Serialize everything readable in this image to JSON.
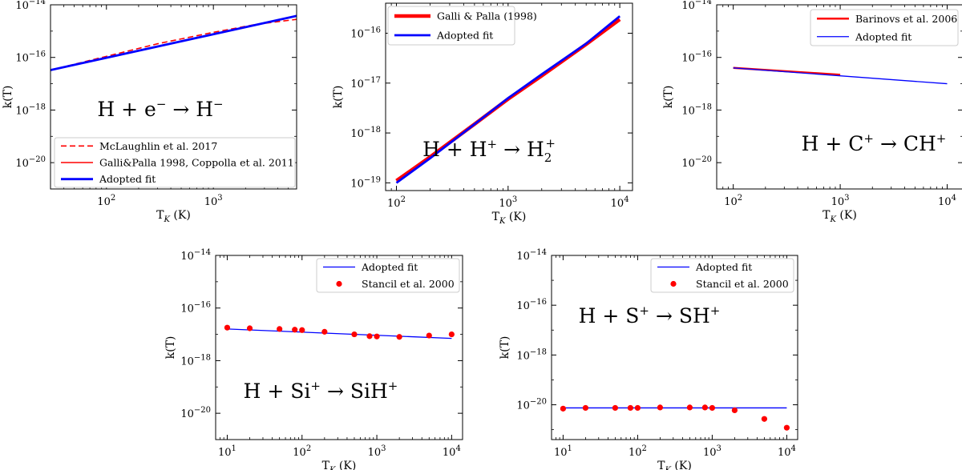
{
  "colors": {
    "red": "#ff0000",
    "blue": "#0000ff",
    "black": "#000000"
  },
  "chart_data": [
    {
      "type": "line",
      "title": "",
      "xlabel": "T_K (K)",
      "ylabel": "k(T)",
      "xscale": "log",
      "yscale": "log",
      "xlim": [
        30,
        6000
      ],
      "ylim": [
        1e-21,
        1e-14
      ],
      "xticks": [
        100,
        1000
      ],
      "xtick_labels": [
        [
          "10",
          "2"
        ],
        [
          "10",
          "3"
        ]
      ],
      "yticks": [
        1e-20,
        1e-18,
        1e-16,
        1e-14
      ],
      "ytick_labels": [
        [
          "10",
          "−20"
        ],
        [
          "10",
          "−18"
        ],
        [
          "10",
          "−16"
        ],
        [
          "10",
          "−14"
        ]
      ],
      "reaction": [
        "H + e",
        "−",
        " → H",
        "−"
      ],
      "legend_position": "lower-left",
      "series": [
        {
          "name": "McLaughlin et al. 2017",
          "color": "#ff0000",
          "style": "dashed",
          "width": 1.6,
          "x": [
            30,
            100,
            300,
            1000,
            2500,
            6000
          ],
          "y": [
            3.3e-17,
            1.1e-16,
            3.3e-16,
            9e-16,
            1.8e-15,
            2.8e-15
          ]
        },
        {
          "name": "Galli&Palla 1998, Coppolla et al. 2011",
          "color": "#ff0000",
          "style": "solid",
          "width": 1.4,
          "x": [
            30,
            6000
          ],
          "y": [
            3.3e-17,
            3.8e-15
          ]
        },
        {
          "name": "Adopted fit",
          "color": "#0000ff",
          "style": "solid",
          "width": 2.8,
          "x": [
            30,
            6000
          ],
          "y": [
            3.3e-17,
            3.8e-15
          ]
        }
      ]
    },
    {
      "type": "line",
      "title": "",
      "xlabel": "T_K (K)",
      "ylabel": "k(T)",
      "xscale": "log",
      "yscale": "log",
      "xlim": [
        80,
        13000
      ],
      "ylim": [
        7e-20,
        4e-16
      ],
      "xticks": [
        100,
        1000,
        10000
      ],
      "xtick_labels": [
        [
          "10",
          "2"
        ],
        [
          "10",
          "3"
        ],
        [
          "10",
          "4"
        ]
      ],
      "yticks": [
        1e-19,
        1e-18,
        1e-17,
        1e-16
      ],
      "ytick_labels": [
        [
          "10",
          "−19"
        ],
        [
          "10",
          "−18"
        ],
        [
          "10",
          "−17"
        ],
        [
          "10",
          "−16"
        ]
      ],
      "reaction": [
        "H + H",
        "+",
        " → H",
        "2",
        "+"
      ],
      "legend_position": "top-left",
      "series": [
        {
          "name": "Galli & Palla (1998)",
          "color": "#ff0000",
          "style": "solid",
          "width": 4.5,
          "x": [
            100,
            200,
            500,
            1000,
            2000,
            5000,
            10000
          ],
          "y": [
            1.1e-19,
            3.3e-19,
            1.5e-18,
            4.8e-18,
            1.4e-17,
            6e-17,
            1.9e-16
          ]
        },
        {
          "name": "Adopted fit",
          "color": "#0000ff",
          "style": "solid",
          "width": 2.8,
          "x": [
            100,
            200,
            500,
            1000,
            2000,
            5000,
            10000
          ],
          "y": [
            1e-19,
            3.1e-19,
            1.5e-18,
            5e-18,
            1.5e-17,
            6.2e-17,
            2.2e-16
          ]
        }
      ]
    },
    {
      "type": "line",
      "title": "",
      "xlabel": "T_K (K)",
      "ylabel": "k(T)",
      "xscale": "log",
      "yscale": "log",
      "xlim": [
        70,
        14000
      ],
      "ylim": [
        1e-21,
        1e-14
      ],
      "xticks": [
        100,
        1000,
        10000
      ],
      "xtick_labels": [
        [
          "10",
          "2"
        ],
        [
          "10",
          "3"
        ],
        [
          "10",
          "4"
        ]
      ],
      "yticks": [
        1e-20,
        1e-18,
        1e-16,
        1e-14
      ],
      "ytick_labels": [
        [
          "10",
          "−20"
        ],
        [
          "10",
          "−18"
        ],
        [
          "10",
          "−16"
        ],
        [
          "10",
          "−14"
        ]
      ],
      "reaction": [
        "H + C",
        "+",
        " → CH",
        "+"
      ],
      "legend_position": "top-right",
      "series": [
        {
          "name": "Barinovs et al. 2006",
          "color": "#ff0000",
          "style": "solid",
          "width": 2.5,
          "x": [
            100,
            1000
          ],
          "y": [
            4e-17,
            2.2e-17
          ]
        },
        {
          "name": "Adopted fit",
          "color": "#0000ff",
          "style": "solid",
          "width": 1.3,
          "x": [
            100,
            10000
          ],
          "y": [
            4e-17,
            1e-17
          ]
        }
      ]
    },
    {
      "type": "scatter",
      "title": "",
      "xlabel": "T_K (K)",
      "ylabel": "k(T)",
      "xscale": "log",
      "yscale": "log",
      "xlim": [
        7,
        14000
      ],
      "ylim": [
        1e-21,
        1e-14
      ],
      "xticks": [
        10,
        100,
        1000,
        10000
      ],
      "xtick_labels": [
        [
          "10",
          "1"
        ],
        [
          "10",
          "2"
        ],
        [
          "10",
          "3"
        ],
        [
          "10",
          "4"
        ]
      ],
      "yticks": [
        1e-20,
        1e-18,
        1e-16,
        1e-14
      ],
      "ytick_labels": [
        [
          "10",
          "−20"
        ],
        [
          "10",
          "−18"
        ],
        [
          "10",
          "−16"
        ],
        [
          "10",
          "−14"
        ]
      ],
      "reaction": [
        "H + Si",
        "+",
        " → SiH",
        "+"
      ],
      "legend_position": "top-right",
      "series": [
        {
          "name": "Adopted fit",
          "kind": "line",
          "color": "#0000ff",
          "width": 1.3,
          "x": [
            10,
            10000
          ],
          "y": [
            1.6e-17,
            7e-18
          ]
        },
        {
          "name": "Stancil et al. 2000",
          "kind": "points",
          "color": "#ff0000",
          "x": [
            10,
            20,
            50,
            80,
            100,
            200,
            500,
            800,
            1000,
            2000,
            5000,
            10000
          ],
          "y": [
            1.8e-17,
            1.7e-17,
            1.6e-17,
            1.5e-17,
            1.45e-17,
            1.25e-17,
            1e-17,
            8.5e-18,
            8.3e-18,
            8e-18,
            9e-18,
            1e-17
          ]
        }
      ]
    },
    {
      "type": "scatter",
      "title": "",
      "xlabel": "T_K (K)",
      "ylabel": "k(T)",
      "xscale": "log",
      "yscale": "log",
      "xlim": [
        7,
        14000
      ],
      "ylim": [
        4e-22,
        1e-14
      ],
      "xticks": [
        10,
        100,
        1000,
        10000
      ],
      "xtick_labels": [
        [
          "10",
          "1"
        ],
        [
          "10",
          "2"
        ],
        [
          "10",
          "3"
        ],
        [
          "10",
          "4"
        ]
      ],
      "yticks": [
        1e-20,
        1e-18,
        1e-16,
        1e-14
      ],
      "ytick_labels": [
        [
          "10",
          "−20"
        ],
        [
          "10",
          "−18"
        ],
        [
          "10",
          "−16"
        ],
        [
          "10",
          "−14"
        ]
      ],
      "reaction": [
        "H + S",
        "+",
        " → SH",
        "+"
      ],
      "legend_position": "top-right",
      "series": [
        {
          "name": "Adopted fit",
          "kind": "line",
          "color": "#0000ff",
          "width": 1.3,
          "x": [
            10,
            10000
          ],
          "y": [
            7.5e-21,
            7.5e-21
          ]
        },
        {
          "name": "Stancil et al. 2000",
          "kind": "points",
          "color": "#ff0000",
          "x": [
            10,
            20,
            50,
            80,
            100,
            200,
            500,
            800,
            1000,
            2000,
            5000,
            10000
          ],
          "y": [
            7e-21,
            7.5e-21,
            7.5e-21,
            7.5e-21,
            7.5e-21,
            7.8e-21,
            7.8e-21,
            7.8e-21,
            7.5e-21,
            6e-21,
            2.7e-21,
            1.2e-21
          ]
        }
      ]
    }
  ]
}
